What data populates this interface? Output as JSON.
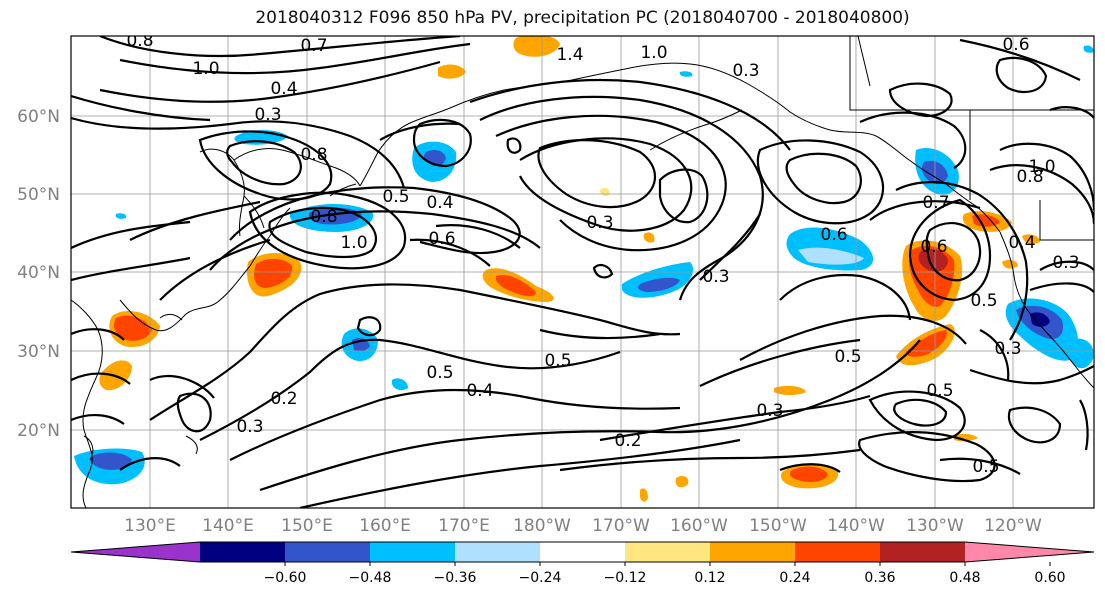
{
  "title": "2018040312 F096 850 hPa PV, precipitation PC (2018040700 - 2018040800)",
  "lat_labels": [
    "60°N",
    "50°N",
    "40°N",
    "30°N",
    "20°N"
  ],
  "lon_labels": [
    "130°E",
    "140°E",
    "150°E",
    "160°E",
    "170°E",
    "180°W",
    "170°W",
    "160°W",
    "150°W",
    "140°W",
    "130°W",
    "120°W"
  ],
  "colorbar": {
    "colors": [
      "#9933cc",
      "#000080",
      "#3355cc",
      "#00bfff",
      "#b0e0ff",
      "#ffffff",
      "#ffe680",
      "#ffa500",
      "#ff4400",
      "#b22222",
      "#ff88aa"
    ],
    "tick_labels": [
      "−0.60",
      "−0.48",
      "−0.36",
      "−0.24",
      "−0.12",
      "0.12",
      "0.24",
      "0.36",
      "0.48",
      "0.60"
    ]
  },
  "contour_labels": [
    "0.7",
    "1.0",
    "0.4",
    "0.3",
    "0.8",
    "0.5",
    "0.4",
    "0.6",
    "1.0",
    "0.3",
    "0.2",
    "0.3",
    "0.5",
    "0.4",
    "0.5",
    "0.3",
    "0.6",
    "0.2",
    "0.3",
    "0.5",
    "0.3",
    "0.6",
    "0.4",
    "0.7",
    "0.5",
    "1.0",
    "0.8",
    "0.6",
    "1.4",
    "1.0",
    "0.3",
    "0.5",
    "0.8"
  ]
}
